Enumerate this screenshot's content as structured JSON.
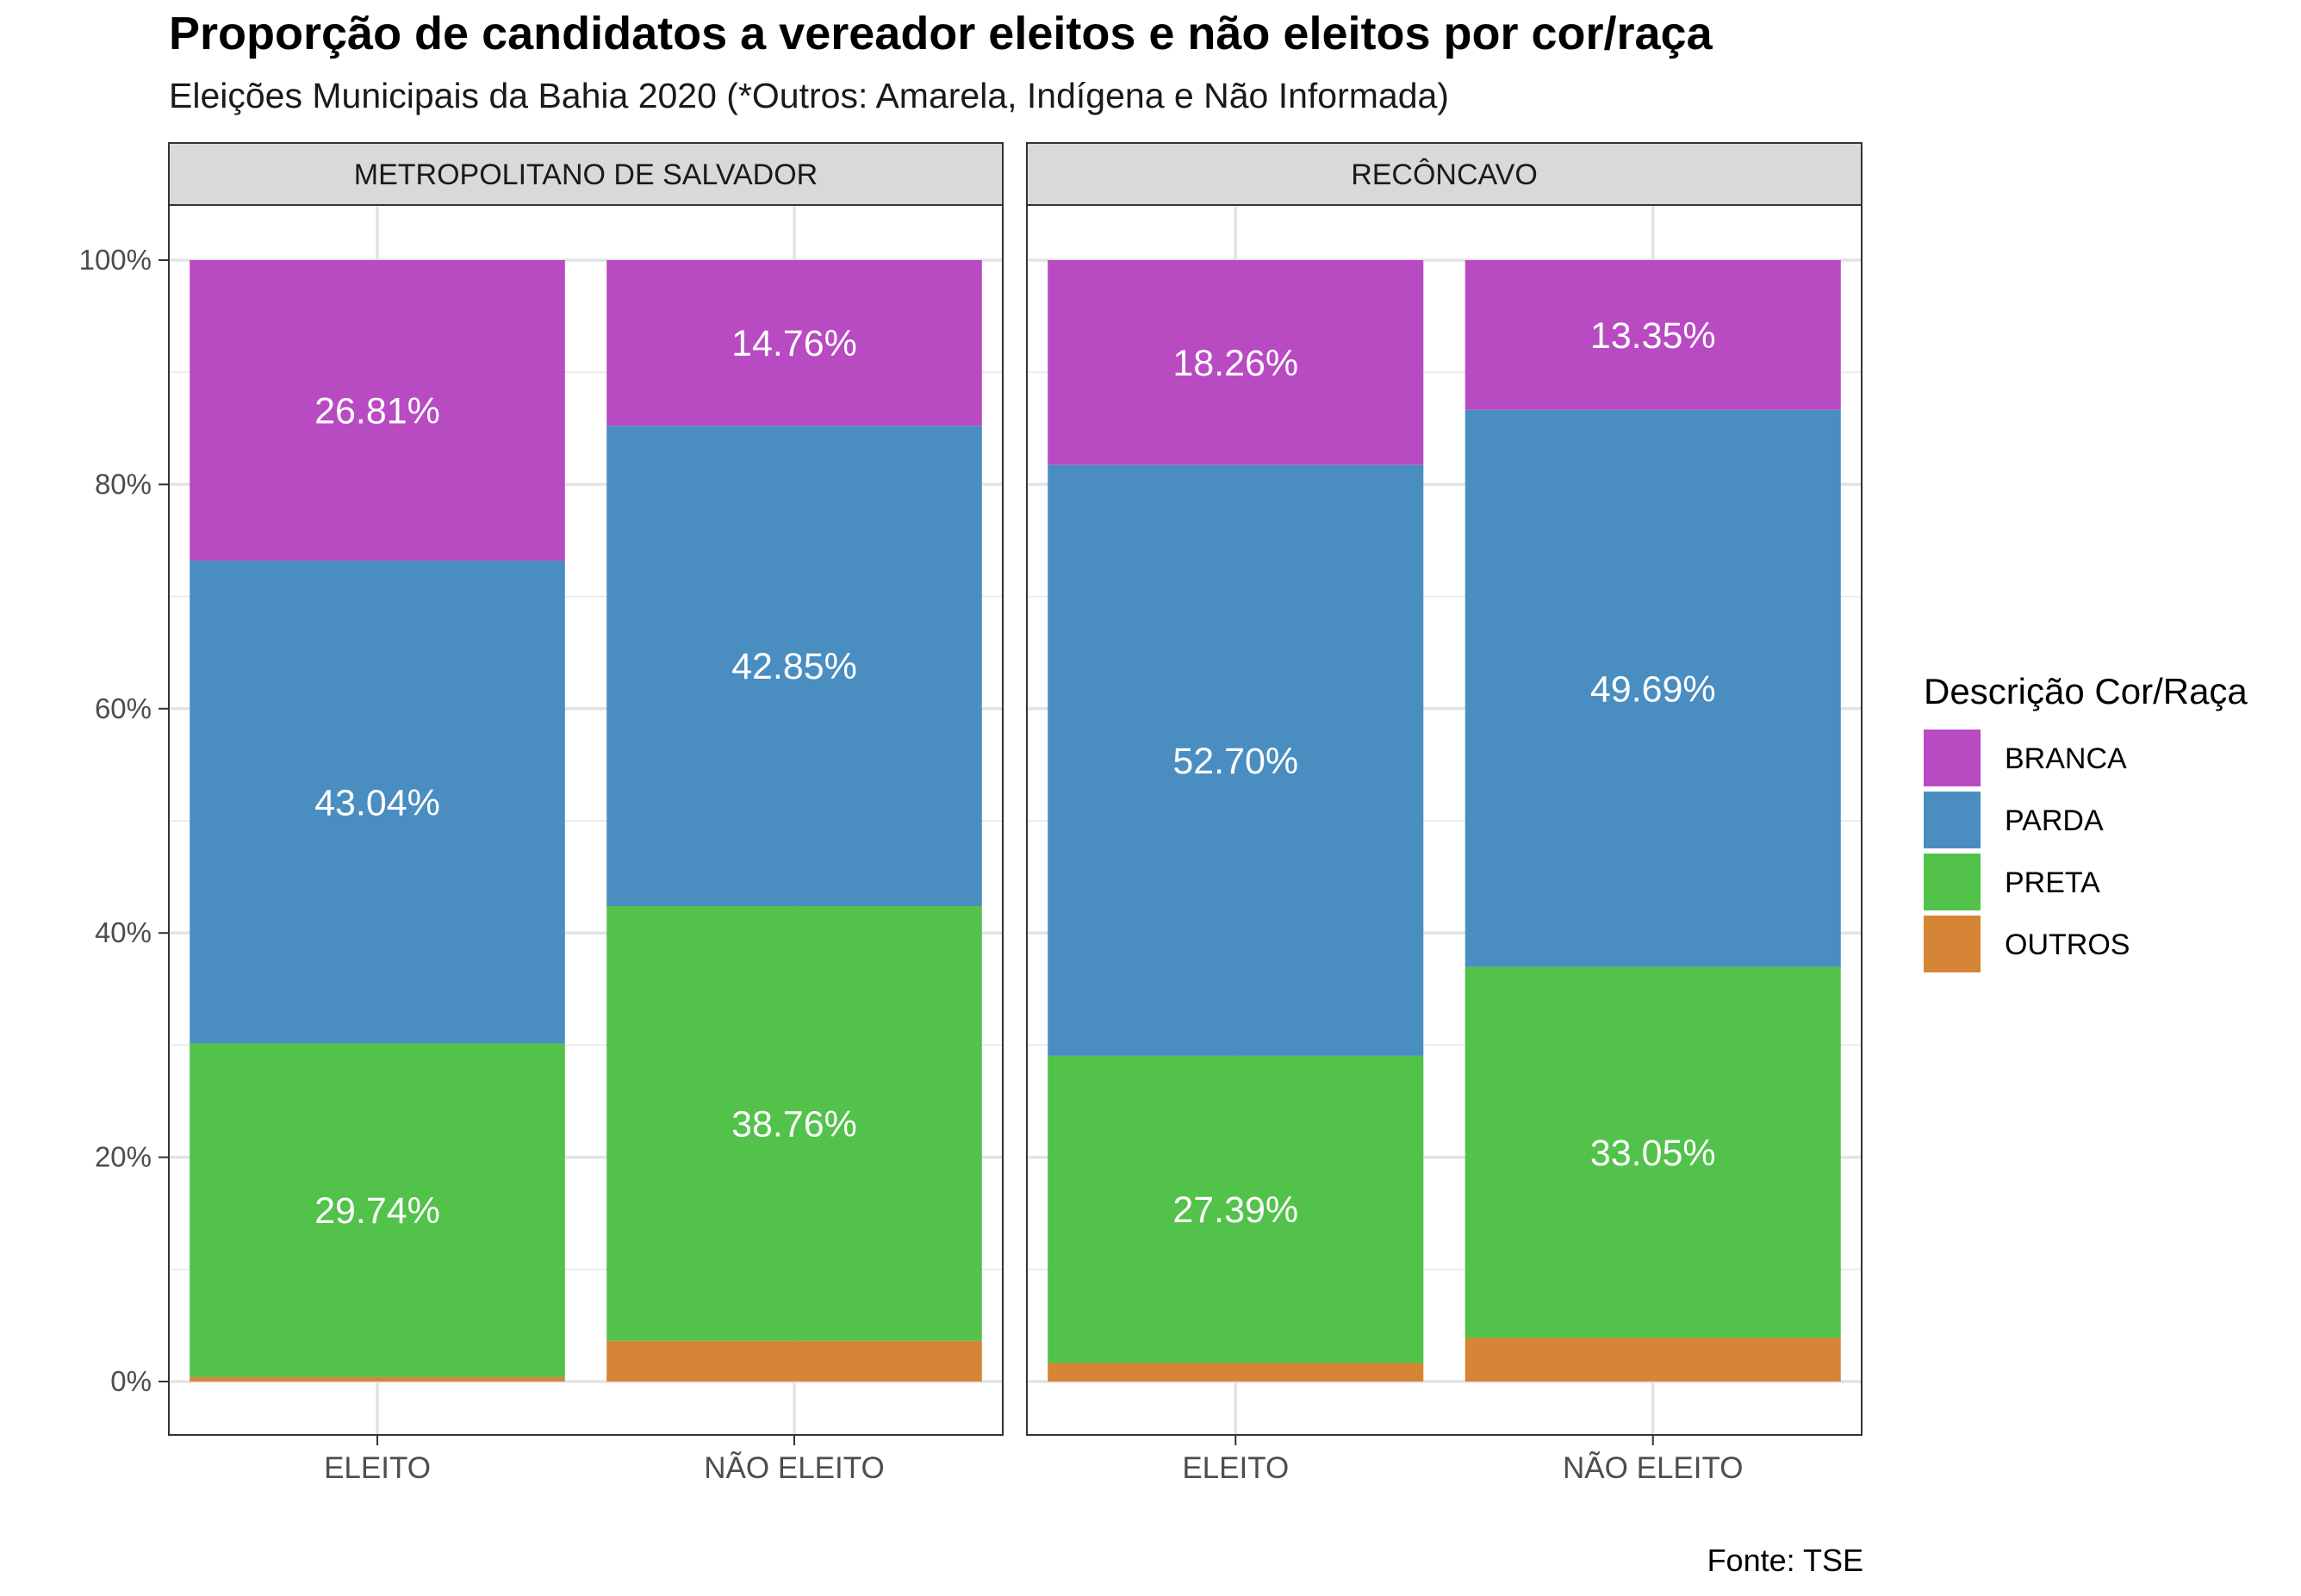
{
  "chart_data": {
    "type": "bar",
    "stacked": true,
    "title": "Proporção de candidatos a vereador eleitos e não eleitos por cor/raça",
    "subtitle": "Eleições Municipais da Bahia 2020 (*Outros: Amarela, Indígena e Não Informada)",
    "caption": "Fonte: TSE",
    "ylim": [
      0,
      100
    ],
    "y_ticks": [
      "0%",
      "20%",
      "40%",
      "60%",
      "80%",
      "100%"
    ],
    "y_tick_values": [
      0,
      20,
      40,
      60,
      80,
      100
    ],
    "categories": [
      "ELEITO",
      "NÃO ELEITO"
    ],
    "legend": {
      "title": "Descrição Cor/Raça",
      "position": "right",
      "items": [
        {
          "name": "BRANCA",
          "color": "#B84AC2"
        },
        {
          "name": "PARDA",
          "color": "#4A8EC1"
        },
        {
          "name": "PRETA",
          "color": "#52C24A"
        },
        {
          "name": "OUTROS",
          "color": "#D58535"
        }
      ]
    },
    "panels": [
      {
        "name": "METROPOLITANO DE SALVADOR",
        "series": [
          {
            "name": "OUTROS",
            "color": "#D58535",
            "values": [
              0.41,
              3.63
            ],
            "labels": [
              "",
              ""
            ]
          },
          {
            "name": "PRETA",
            "color": "#52C24A",
            "values": [
              29.74,
              38.76
            ],
            "labels": [
              "29.74%",
              "38.76%"
            ]
          },
          {
            "name": "PARDA",
            "color": "#4A8EC1",
            "values": [
              43.04,
              42.85
            ],
            "labels": [
              "43.04%",
              "42.85%"
            ]
          },
          {
            "name": "BRANCA",
            "color": "#B84AC2",
            "values": [
              26.81,
              14.76
            ],
            "labels": [
              "26.81%",
              "14.76%"
            ]
          }
        ]
      },
      {
        "name": "RECÔNCAVO",
        "series": [
          {
            "name": "OUTROS",
            "color": "#D58535",
            "values": [
              1.65,
              3.91
            ],
            "labels": [
              "",
              ""
            ]
          },
          {
            "name": "PRETA",
            "color": "#52C24A",
            "values": [
              27.39,
              33.05
            ],
            "labels": [
              "27.39%",
              "33.05%"
            ]
          },
          {
            "name": "PARDA",
            "color": "#4A8EC1",
            "values": [
              52.7,
              49.69
            ],
            "labels": [
              "52.70%",
              "49.69%"
            ]
          },
          {
            "name": "BRANCA",
            "color": "#B84AC2",
            "values": [
              18.26,
              13.35
            ],
            "labels": [
              "18.26%",
              "13.35%"
            ]
          }
        ]
      }
    ],
    "grid": true
  }
}
